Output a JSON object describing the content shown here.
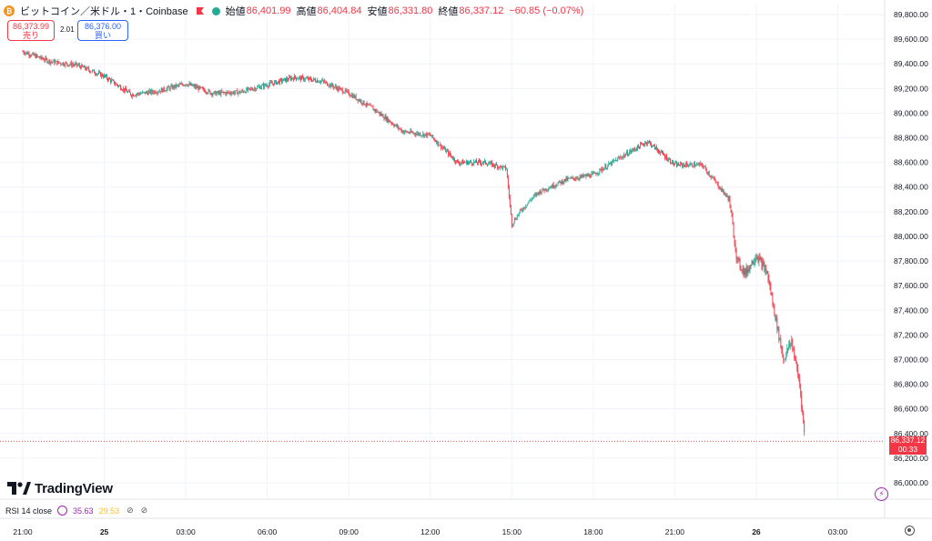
{
  "header": {
    "symbol": "ビットコイン／米ドル・1・Coinbase",
    "coin_icon": "bitcoin-icon",
    "open_label": "始値",
    "open": "86,401.99",
    "high_label": "高値",
    "high": "86,404.84",
    "low_label": "安値",
    "low": "86,331.80",
    "close_label": "終値",
    "close": "86,337.12",
    "change": "−60.85 (−0.07%)"
  },
  "trade": {
    "sell_price": "86,373.99",
    "sell_label": "売り",
    "spread": "2.01",
    "buy_price": "86,376.00",
    "buy_label": "買い"
  },
  "price_label": {
    "value": "86,337.12",
    "countdown": "00:33"
  },
  "rsi": {
    "label": "RSI 14 close",
    "value1": "35.63",
    "value2": "29.53"
  },
  "branding": {
    "logo_text": "TradingView"
  },
  "colors": {
    "up": "#22ab94",
    "down": "#f23645",
    "rsi": "#9c27b0",
    "accent": "#2962ff"
  },
  "chart_data": {
    "type": "line",
    "title": "ビットコイン／米ドル・1・Coinbase",
    "xlabel": "",
    "ylabel": "",
    "x_ticks": [
      "21:00",
      "25",
      "03:00",
      "06:00",
      "09:00",
      "12:00",
      "15:00",
      "18:00",
      "21:00",
      "26",
      "03:00"
    ],
    "y_ticks": [
      "86,000.00",
      "86,200.00",
      "86,400.00",
      "86,600.00",
      "86,800.00",
      "87,000.00",
      "87,200.00",
      "87,400.00",
      "87,600.00",
      "87,800.00",
      "88,000.00",
      "88,200.00",
      "88,400.00",
      "88,600.00",
      "88,800.00",
      "89,000.00",
      "89,200.00",
      "89,400.00",
      "89,600.00",
      "89,800.00"
    ],
    "ylim": [
      86000,
      89800
    ],
    "x_hours": [
      0,
      1,
      1.6,
      2,
      3,
      4,
      5,
      6,
      7,
      8,
      9,
      10,
      11,
      12,
      13,
      14,
      15,
      16,
      17,
      17.8,
      18,
      18.3,
      18.7,
      19,
      20,
      21,
      22,
      23,
      24,
      25,
      26,
      26.3,
      26.6,
      27,
      27.4,
      28,
      28.3,
      28.6,
      28.8
    ],
    "series": [
      {
        "values": [
          89500,
          89420,
          89400,
          89390,
          89300,
          89150,
          89180,
          89240,
          89160,
          89170,
          89230,
          89290,
          89260,
          89160,
          89020,
          88850,
          88820,
          88600,
          88600,
          88550,
          88100,
          88200,
          88300,
          88360,
          88460,
          88500,
          88640,
          88770,
          88580,
          88580,
          88300,
          87800,
          87700,
          87850,
          87700,
          87000,
          87150,
          86800,
          86337
        ]
      }
    ],
    "last_price": 86337.12,
    "grid": true,
    "legend": "none"
  }
}
